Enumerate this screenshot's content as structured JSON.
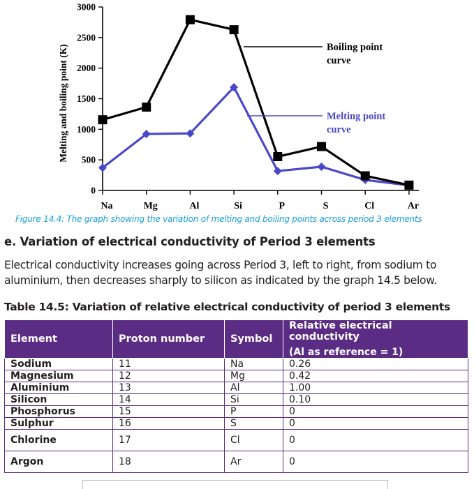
{
  "chart_data": {
    "type": "line",
    "categories": [
      "Na",
      "Mg",
      "Al",
      "Si",
      "P",
      "S",
      "Cl",
      "Ar"
    ],
    "ylabel": "Melting and boiling point (K)",
    "ylim": [
      0,
      3000
    ],
    "yticks": [
      "0",
      "500",
      "1000",
      "1500",
      "2000",
      "2500",
      "3000"
    ],
    "series": [
      {
        "name": "Boiling point curve",
        "color": "#000000",
        "marker": "square",
        "values": [
          1156,
          1363,
          2792,
          2628,
          553,
          718,
          239,
          87
        ]
      },
      {
        "name": "Melting point curve",
        "color": "#4a48c8",
        "marker": "diamond",
        "values": [
          371,
          923,
          933,
          1687,
          317,
          388,
          172,
          84
        ]
      }
    ],
    "annotations": [
      {
        "line1": "Boiling point",
        "line2": "curve",
        "color": "#000000"
      },
      {
        "line1": "Melting point",
        "line2": "curve",
        "color": "#4a48c8"
      }
    ],
    "grid": false
  },
  "caption": "Figure 14.4: The graph showing the variation of melting and boiling points across period 3 elements",
  "section_heading": "e. Variation of electrical conductivity of Period 3 elements",
  "body_text": "Electrical conductivity increases going across Period 3, left to right, from sodium to aluminium, then decreases sharply to silicon as indicated by the graph 14.5 below.",
  "table": {
    "title": "Table 14.5: Variation of relative electrical conductivity of period 3 elements",
    "headers": {
      "element": "Element",
      "proton": "Proton number",
      "symbol": "Symbol",
      "conductivity": "Relative electrical conductivity",
      "conductivity_sub": "(Al as reference = 1)"
    },
    "rows": [
      {
        "element": "Sodium",
        "proton": "11",
        "symbol": "Na",
        "value": "0.26"
      },
      {
        "element": "Magnesium",
        "proton": "12",
        "symbol": "Mg",
        "value": "0.42"
      },
      {
        "element": "Aluminium",
        "proton": "13",
        "symbol": "Al",
        "value": "1.00"
      },
      {
        "element": "Silicon",
        "proton": "14",
        "symbol": "Si",
        "value": "0.10"
      },
      {
        "element": "Phosphorus",
        "proton": "15",
        "symbol": "P",
        "value": "0"
      },
      {
        "element": "Sulphur",
        "proton": "16",
        "symbol": "S",
        "value": "0"
      },
      {
        "element": "Chlorine",
        "proton": "17",
        "symbol": "Cl",
        "value": "0"
      },
      {
        "element": "Argon",
        "proton": "18",
        "symbol": "Ar",
        "value": "0"
      }
    ]
  },
  "colors": {
    "caption": "#1a9fd9",
    "table_header_bg": "#5b2c83",
    "table_border": "#5b2c83"
  }
}
